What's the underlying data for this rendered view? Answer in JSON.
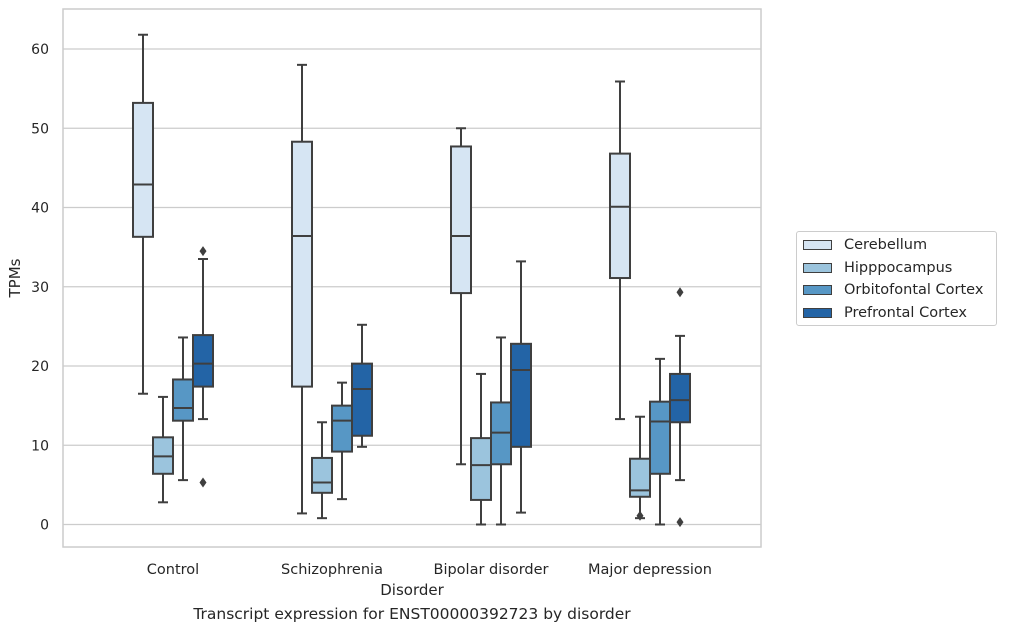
{
  "chart_data": {
    "type": "box",
    "caption": "Transcript expression for ENST00000392723 by disorder",
    "xlabel": "Disorder",
    "ylabel": "TPMs",
    "ylim": [
      -3,
      65
    ],
    "yticks": [
      0,
      10,
      20,
      30,
      40,
      50,
      60
    ],
    "grid": "horizontal",
    "legend_position": "right",
    "categories": [
      "Control",
      "Schizophrenia",
      "Bipolar disorder",
      "Major depression"
    ],
    "series": [
      {
        "name": "Cerebellum",
        "color": "#d6e5f3",
        "boxes": [
          {
            "min": 16.5,
            "q1": 36.3,
            "median": 42.9,
            "q3": 53.2,
            "max": 61.8,
            "outliers": []
          },
          {
            "min": 1.4,
            "q1": 17.4,
            "median": 36.4,
            "q3": 48.3,
            "max": 58.0,
            "outliers": []
          },
          {
            "min": 7.6,
            "q1": 29.2,
            "median": 36.4,
            "q3": 47.7,
            "max": 50.0,
            "outliers": []
          },
          {
            "min": 13.3,
            "q1": 31.1,
            "median": 40.1,
            "q3": 46.8,
            "max": 55.9,
            "outliers": []
          }
        ]
      },
      {
        "name": "Hipppocampus",
        "color": "#9bc4dd",
        "boxes": [
          {
            "min": 2.8,
            "q1": 6.4,
            "median": 8.6,
            "q3": 11.0,
            "max": 16.1,
            "outliers": []
          },
          {
            "min": 0.8,
            "q1": 4.0,
            "median": 5.3,
            "q3": 8.4,
            "max": 12.9,
            "outliers": []
          },
          {
            "min": 0.0,
            "q1": 3.1,
            "median": 7.5,
            "q3": 10.9,
            "max": 19.0,
            "outliers": []
          },
          {
            "min": 0.8,
            "q1": 3.5,
            "median": 4.3,
            "q3": 8.3,
            "max": 13.6,
            "outliers": [
              1.1
            ]
          }
        ]
      },
      {
        "name": "Orbitofontal Cortex",
        "color": "#5797c5",
        "boxes": [
          {
            "min": 5.6,
            "q1": 13.1,
            "median": 14.7,
            "q3": 18.3,
            "max": 23.6,
            "outliers": []
          },
          {
            "min": 3.2,
            "q1": 9.2,
            "median": 13.1,
            "q3": 15.0,
            "max": 17.9,
            "outliers": []
          },
          {
            "min": 0.0,
            "q1": 7.6,
            "median": 11.6,
            "q3": 15.4,
            "max": 23.6,
            "outliers": []
          },
          {
            "min": 0.0,
            "q1": 6.4,
            "median": 13.0,
            "q3": 15.5,
            "max": 20.9,
            "outliers": []
          }
        ]
      },
      {
        "name": "Prefrontal Cortex",
        "color": "#2364a6",
        "boxes": [
          {
            "min": 13.3,
            "q1": 17.4,
            "median": 20.3,
            "q3": 23.9,
            "max": 33.5,
            "outliers": [
              34.5,
              5.3
            ]
          },
          {
            "min": 9.8,
            "q1": 11.2,
            "median": 17.1,
            "q3": 20.3,
            "max": 25.2,
            "outliers": []
          },
          {
            "min": 1.5,
            "q1": 9.8,
            "median": 19.5,
            "q3": 22.8,
            "max": 33.2,
            "outliers": []
          },
          {
            "min": 5.6,
            "q1": 12.9,
            "median": 15.7,
            "q3": 19.0,
            "max": 23.8,
            "outliers": [
              29.3,
              0.3
            ]
          }
        ]
      }
    ]
  }
}
